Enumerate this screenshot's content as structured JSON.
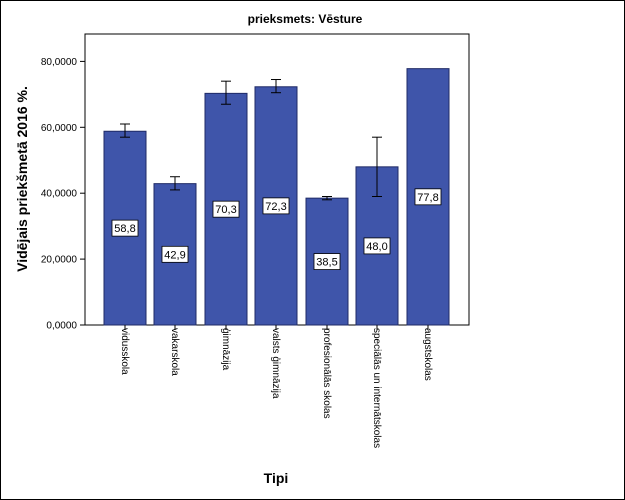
{
  "chart_data": {
    "type": "bar",
    "title": "prieksmets: Vēsture",
    "xlabel": "Tipi",
    "ylabel": "Vidējais priekšmetā 2016 %.",
    "ylim": [
      0,
      90
    ],
    "yticks": [
      0,
      20,
      40,
      60,
      80
    ],
    "ytick_labels": [
      "0,0000",
      "20,0000",
      "40,0000",
      "60,0000",
      "80,0000"
    ],
    "categories": [
      "vidusskola",
      "vakarskola",
      "ģimnāzija",
      "valsts ģimnāzija",
      "profesionālās skolas",
      "speciālās un internātskolas",
      "augstskolas"
    ],
    "values": [
      58.8,
      42.9,
      70.3,
      72.3,
      38.5,
      48.0,
      77.8
    ],
    "data_labels": [
      "58,8",
      "42,9",
      "70,3",
      "72,3",
      "38,5",
      "48,0",
      "77,8"
    ],
    "error_bars": [
      {
        "low": 57.0,
        "high": 61.0
      },
      {
        "low": 41.0,
        "high": 45.0
      },
      {
        "low": 67.0,
        "high": 74.0
      },
      {
        "low": 70.5,
        "high": 74.5
      },
      {
        "low": 38.0,
        "high": 39.0
      },
      {
        "low": 39.0,
        "high": 57.0
      },
      null
    ],
    "bar_color": "#3f55aa",
    "bar_stroke": "#1f2a66"
  }
}
